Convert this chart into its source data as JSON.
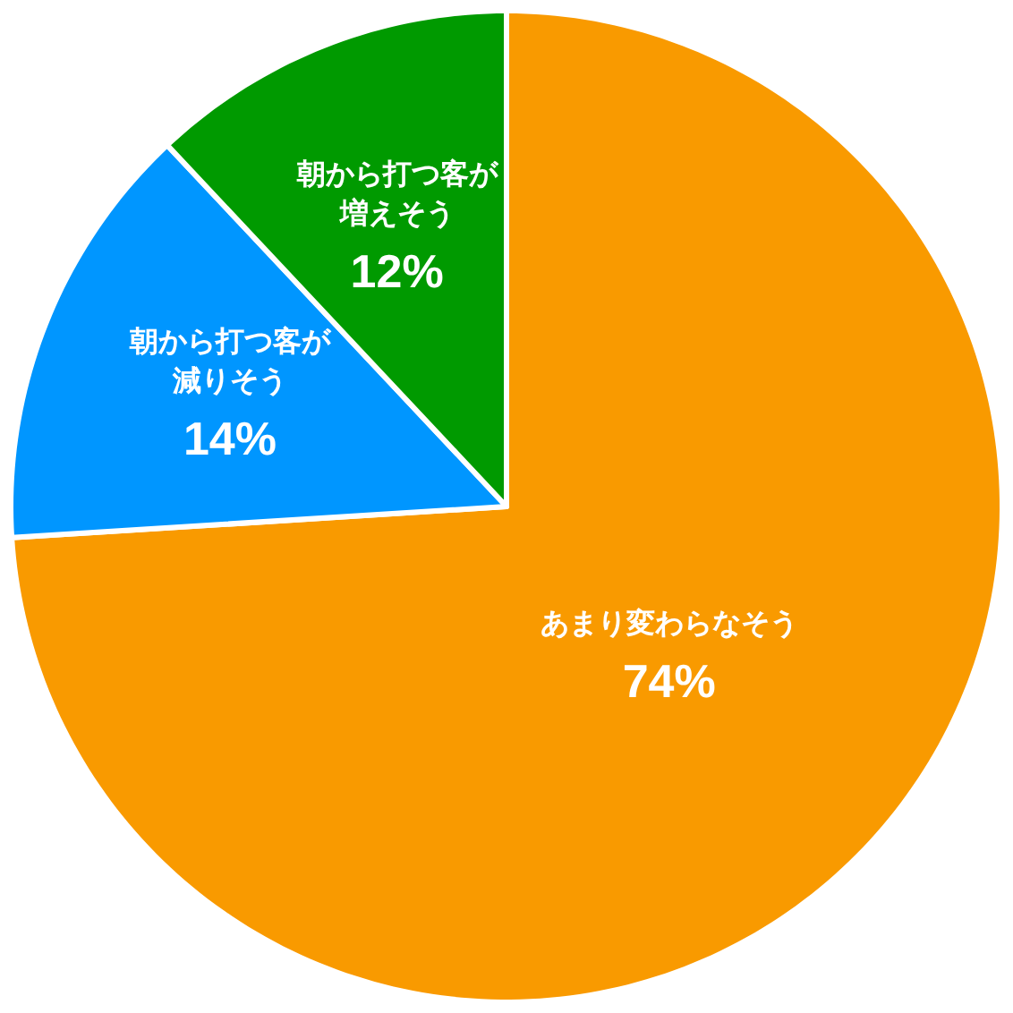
{
  "chart_data": {
    "type": "pie",
    "categories": [
      "あまり変わらなそう",
      "朝から打つ客が減りそう",
      "朝から打つ客が増えそう"
    ],
    "values": [
      74,
      14,
      12
    ],
    "colors": [
      "#f99a00",
      "#0096ff",
      "#009a00"
    ],
    "value_labels": [
      "74%",
      "14%",
      "12%"
    ]
  }
}
